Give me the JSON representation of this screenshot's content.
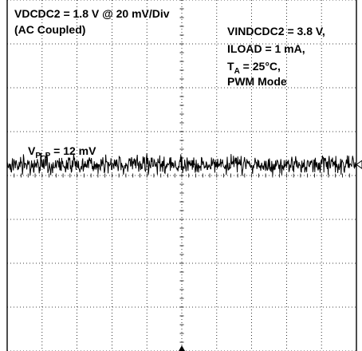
{
  "chart_data": {
    "type": "line",
    "title": "",
    "channel_setting": "VDCDC2 = 1.8 V @ 20 mV/Div",
    "coupling": "(AC Coupled)",
    "conditions": [
      "VINDCDC2 = 3.8 V,",
      "ILOAD = 1 mA,",
      "PWM Mode"
    ],
    "temperature": {
      "prefix": "T",
      "subscript": "A",
      "value": " = 25°C,"
    },
    "annotation": {
      "prefix": "V",
      "subscript": "P–P",
      "value": " = 12 mV"
    },
    "grid": true,
    "divisions": {
      "x": 10,
      "y": 8
    },
    "y_scale_mv_per_div": 20,
    "series": [
      {
        "mean_mv": 0,
        "peak_to_peak_mv": 12,
        "waveform": "noise"
      }
    ],
    "colors": {
      "background": "#ffffff",
      "grid": "#000000",
      "trace": "#000000"
    }
  }
}
